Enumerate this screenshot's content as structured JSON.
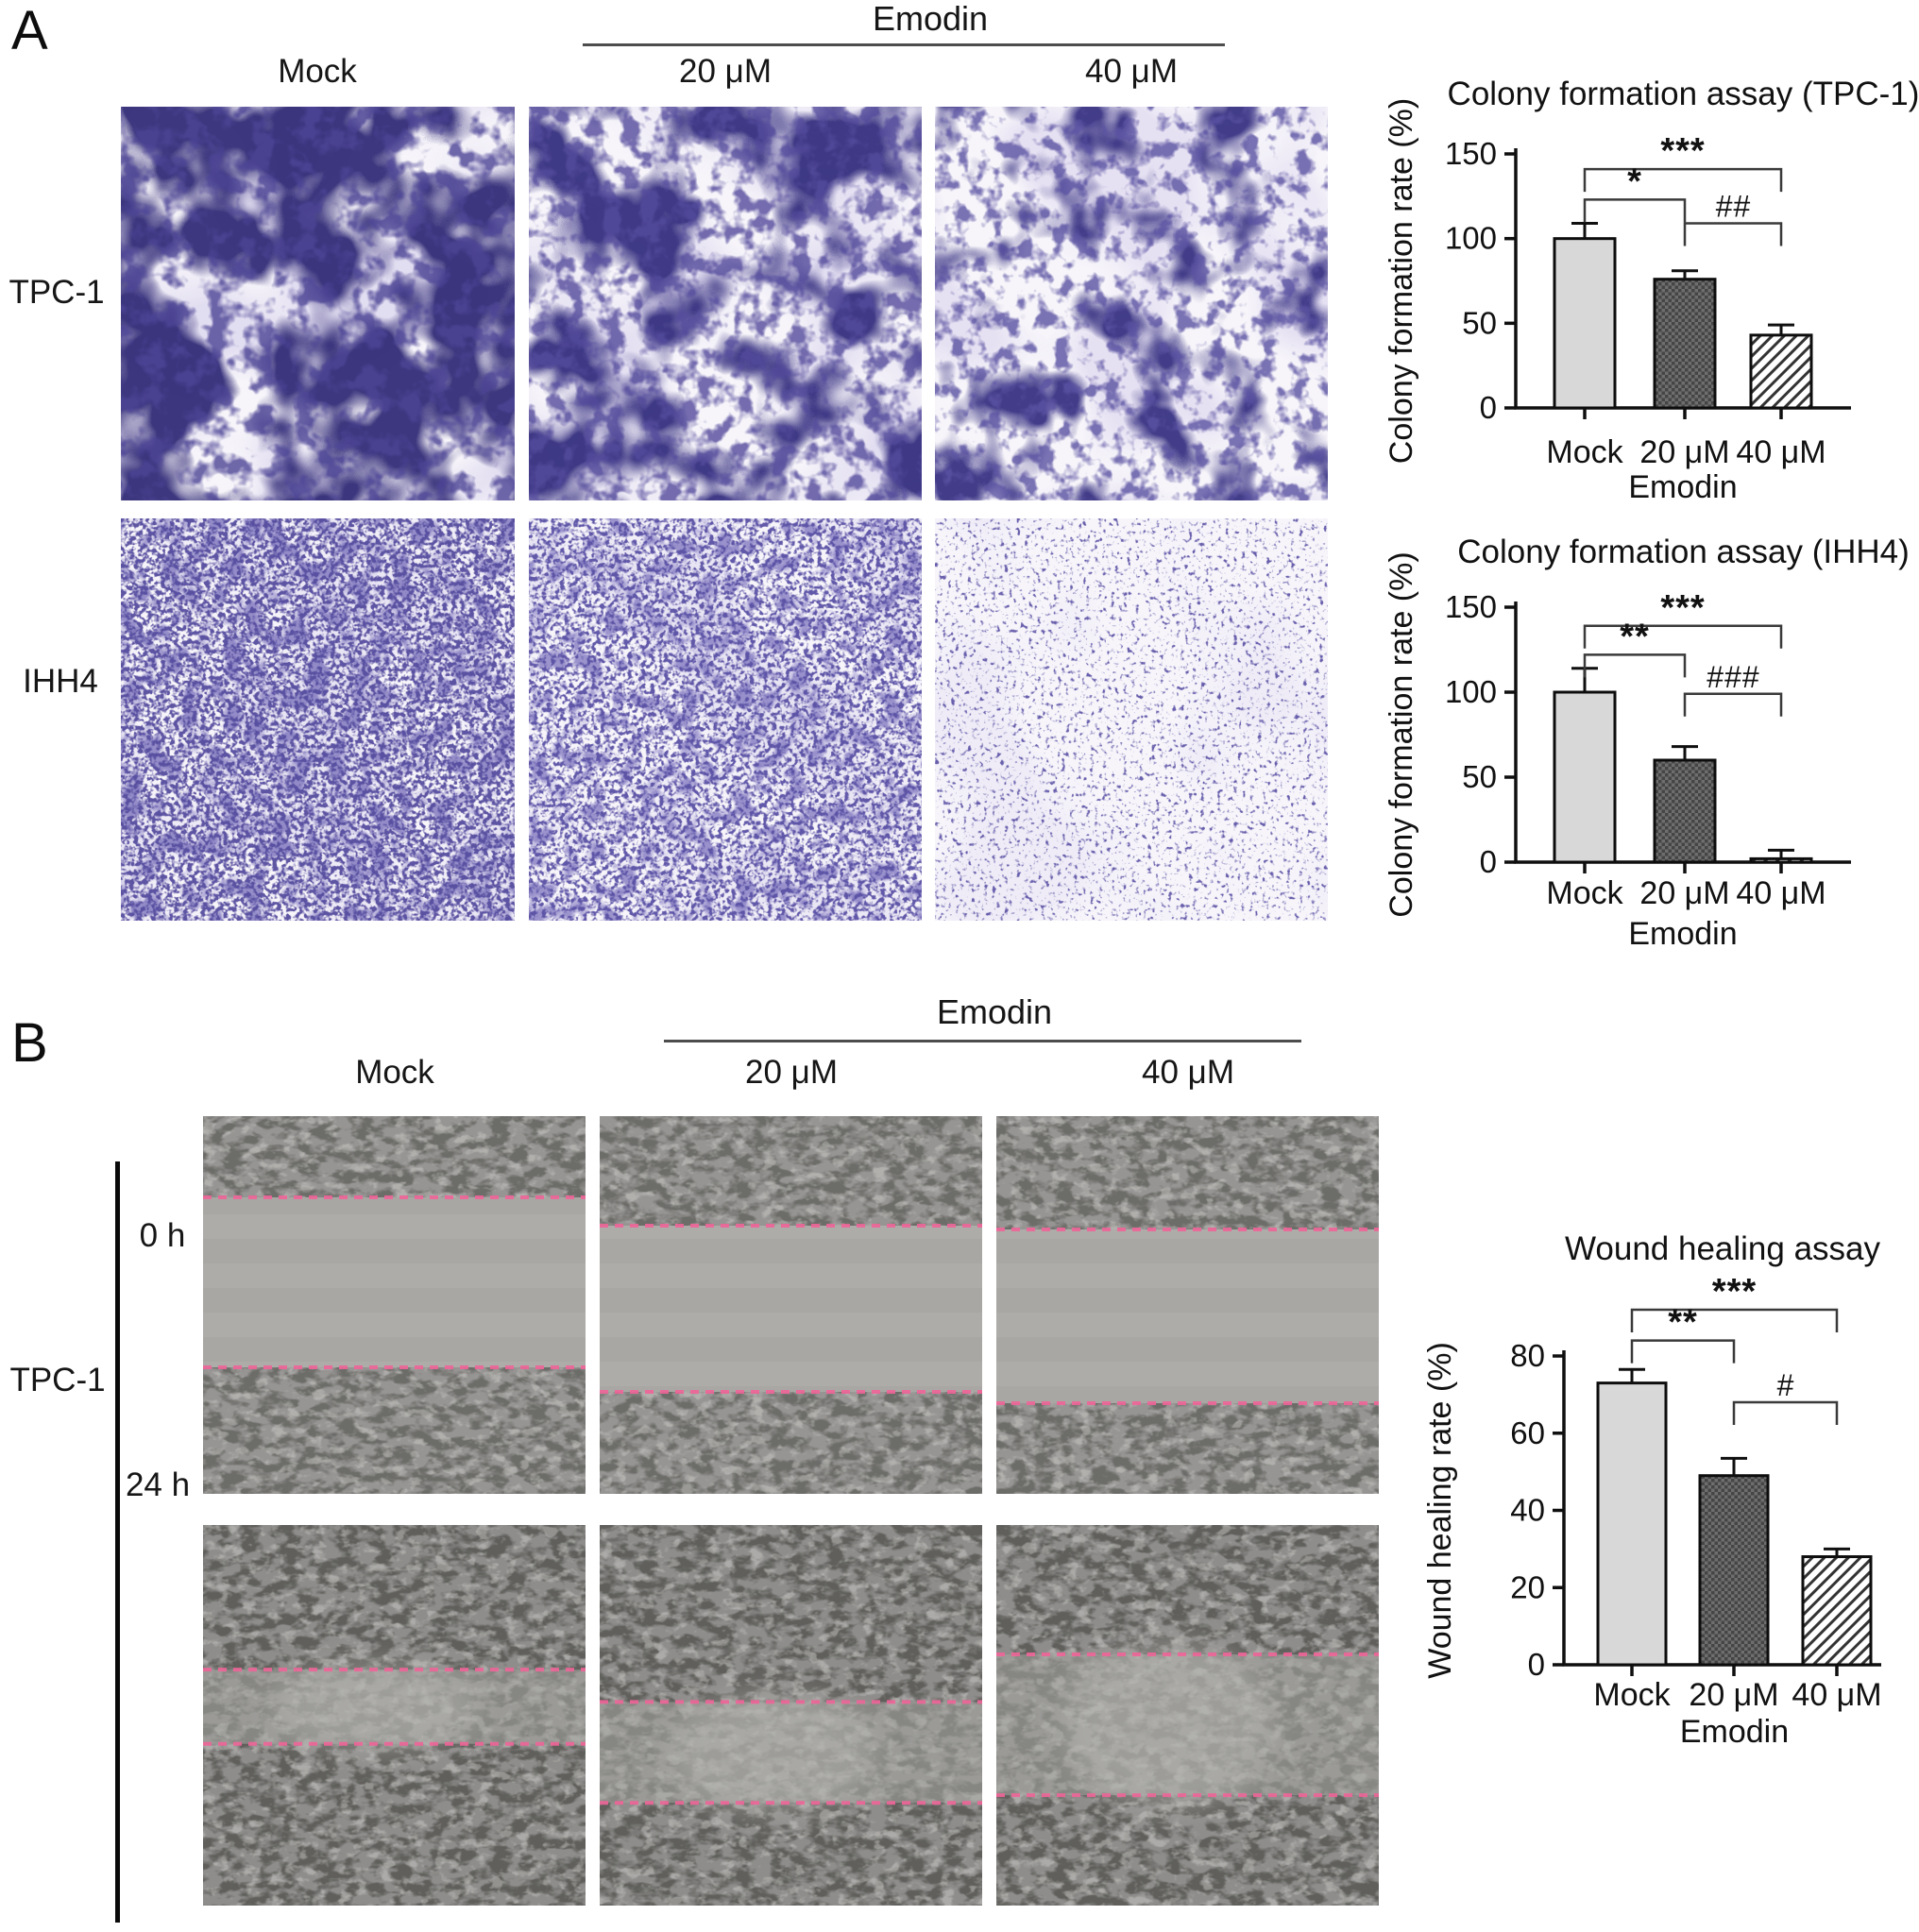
{
  "panel_a": {
    "label": "A",
    "treatment": "Emodin",
    "columns": [
      "Mock",
      "20 μM",
      "40 μM"
    ],
    "row_labels": [
      "TPC-1",
      "IHH4"
    ]
  },
  "panel_b": {
    "label": "B",
    "treatment": "Emodin",
    "columns": [
      "Mock",
      "20 μM",
      "40 μM"
    ],
    "row_label": "TPC-1",
    "timepoints": [
      "0 h",
      "24 h"
    ]
  },
  "colors": {
    "colony_stain_dark": "#332d78",
    "colony_stain_light": "#837bc0",
    "wound_line_pink": "#ef6598",
    "micrograph_gray": "#969593",
    "bar_mock_fill": "#d8d8d8",
    "bar_20um_base": "#6e6e6e",
    "axis_black": "#0f0f0f",
    "bracket_gray": "#3a3a3a"
  },
  "chart_data": [
    {
      "type": "bar",
      "title": "Colony formation assay (TPC-1)",
      "ylabel": "Colony formation rate (%)",
      "xlabel": "Emodin",
      "categories": [
        "Mock",
        "20 μM",
        "40 μM"
      ],
      "values": [
        100,
        76,
        43
      ],
      "errors": [
        9,
        5,
        6
      ],
      "ylim": [
        0,
        150
      ],
      "yticks": [
        0,
        50,
        100,
        150
      ],
      "grid": false,
      "brackets": [
        {
          "from": 0,
          "to": 2,
          "label": "***",
          "level": 141
        },
        {
          "from": 0,
          "to": 1,
          "label": "*",
          "level": 123
        },
        {
          "from": 1,
          "to": 2,
          "label": "##",
          "level": 109
        }
      ]
    },
    {
      "type": "bar",
      "title": "Colony formation assay (IHH4)",
      "ylabel": "Colony formation rate (%)",
      "xlabel": "Emodin",
      "categories": [
        "Mock",
        "20 μM",
        "40 μM"
      ],
      "values": [
        100,
        60,
        2
      ],
      "errors": [
        14,
        8,
        5
      ],
      "ylim": [
        0,
        150
      ],
      "yticks": [
        0,
        50,
        100,
        150
      ],
      "grid": false,
      "brackets": [
        {
          "from": 0,
          "to": 2,
          "label": "***",
          "level": 139
        },
        {
          "from": 0,
          "to": 1,
          "label": "**",
          "level": 122
        },
        {
          "from": 1,
          "to": 2,
          "label": "###",
          "level": 99
        }
      ]
    },
    {
      "type": "bar",
      "title": "Wound healing assay",
      "ylabel": "Wound healing rate (%)",
      "xlabel": "Emodin",
      "categories": [
        "Mock",
        "20 μM",
        "40 μM"
      ],
      "values": [
        73,
        49,
        28
      ],
      "errors": [
        3.5,
        4.5,
        2
      ],
      "ylim": [
        0,
        80
      ],
      "yticks": [
        0,
        20,
        40,
        60,
        80
      ],
      "grid": false,
      "brackets": [
        {
          "from": 0,
          "to": 2,
          "label": "***",
          "level": 92
        },
        {
          "from": 0,
          "to": 1,
          "label": "**",
          "level": 84
        },
        {
          "from": 1,
          "to": 2,
          "label": "#",
          "level": 68
        }
      ]
    }
  ]
}
